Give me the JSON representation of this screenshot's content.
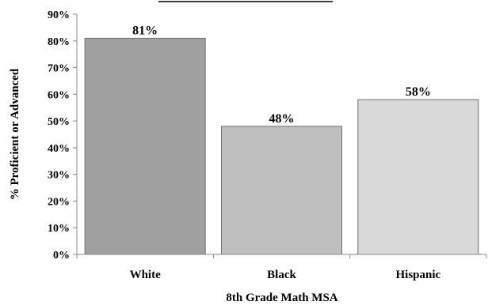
{
  "chart_data": {
    "type": "bar",
    "title": "",
    "xlabel": "8th Grade Math MSA",
    "ylabel": "% Proficient or Advanced",
    "categories": [
      "White",
      "Black",
      "Hispanic"
    ],
    "values": [
      81,
      48,
      58
    ],
    "value_labels": [
      "81%",
      "48%",
      "58%"
    ],
    "ylim": [
      0,
      90
    ],
    "y_ticks": [
      0,
      10,
      20,
      30,
      40,
      50,
      60,
      70,
      80,
      90
    ],
    "y_tick_labels": [
      "0%",
      "10%",
      "20%",
      "30%",
      "40%",
      "50%",
      "60%",
      "70%",
      "80%",
      "90%"
    ],
    "bar_colors": [
      "#a0a0a0",
      "#bfbfbf",
      "#d9d9d9"
    ],
    "grid": false,
    "legend": "none"
  }
}
